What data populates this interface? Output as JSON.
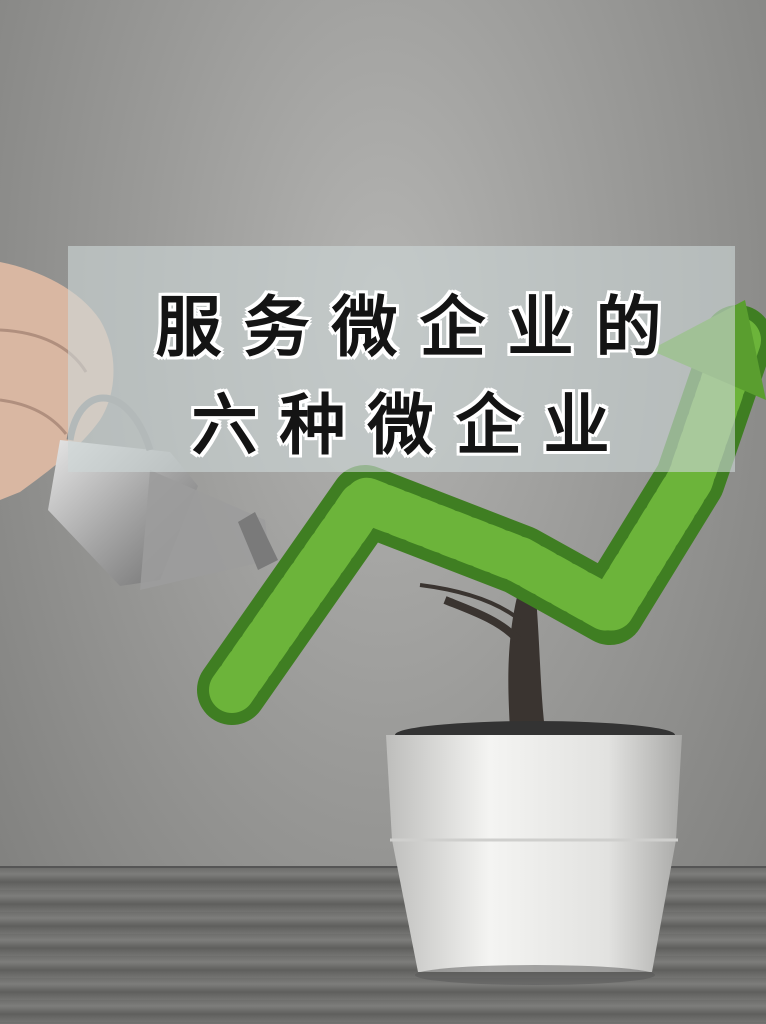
{
  "title": {
    "line1": "服务微企业的",
    "line2": "六种微企业"
  },
  "colors": {
    "wall": "#9a9a98",
    "foliage": "#5a9e2f",
    "pot": "#ececea",
    "trunk": "#3a3430"
  }
}
